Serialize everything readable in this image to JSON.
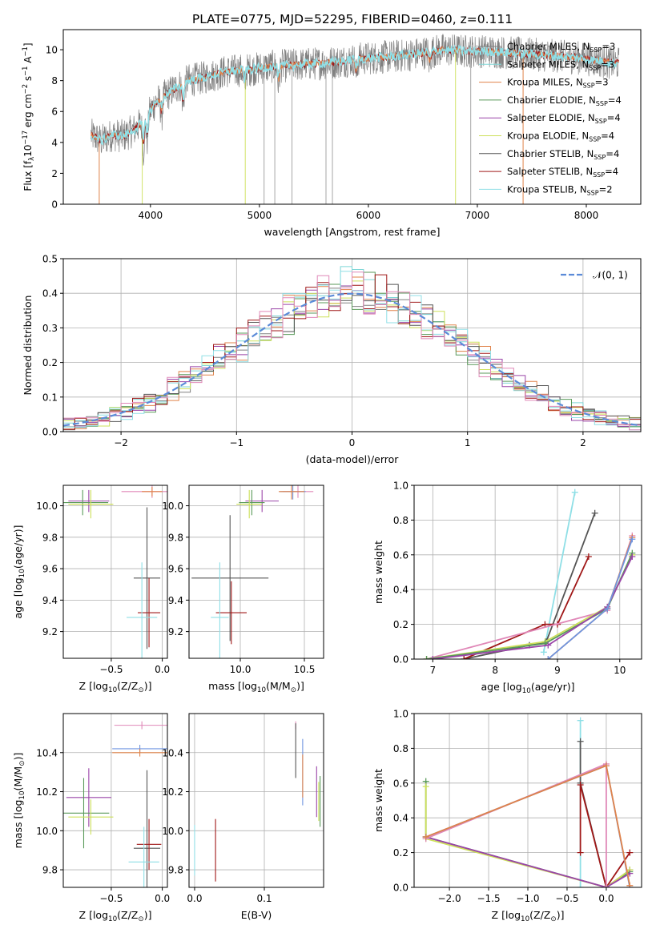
{
  "title": "PLATE=0775, MJD=52295, FIBERID=0460, z=0.111",
  "colors": {
    "Chabrier MILES": "#808080",
    "Salpeter MILES": "#7fd6d6",
    "Kroupa MILES": "#e0834a",
    "Chabrier ELODIE": "#5a9a5a",
    "Salpeter ELODIE": "#9a45a8",
    "Kroupa ELODIE": "#cde05a",
    "Chabrier STELIB": "#555555",
    "Salpeter STELIB": "#a01818",
    "Kroupa STELIB": "#8fdfe6",
    "gauss": "#5b8bd8",
    "pink": "#e088b8",
    "blue": "#6f95e0"
  },
  "chart_data": [
    {
      "id": "spectrum",
      "type": "line",
      "title": "PLATE=0775, MJD=52295, FIBERID=0460, z=0.111",
      "xlabel": "wavelength [Angstrom, rest frame]",
      "ylabel_main": "Flux [f",
      "ylabel_sub1": "λ",
      "ylabel_mid": "10",
      "ylabel_sup1": "−17",
      "ylabel_end": " erg cm",
      "ylabel_sup2": "−2",
      "ylabel_s": " s",
      "ylabel_sup3": "−1",
      "ylabel_A": " A",
      "ylabel_sup4": "−1",
      "ylabel_close": "]",
      "xlim": [
        3200,
        8500
      ],
      "ylim": [
        0,
        11.3
      ],
      "xticks": [
        4000,
        5000,
        6000,
        7000,
        8000
      ],
      "yticks": [
        0,
        2,
        4,
        6,
        8,
        10
      ],
      "grid": false,
      "legend_position": "top-right",
      "legend": [
        {
          "label": "Chabrier MILES, N",
          "sub": "SSP",
          "tail": "=3",
          "color": "Chabrier MILES"
        },
        {
          "label": "Salpeter MILES, N",
          "sub": "SSP",
          "tail": "=3",
          "color": "Salpeter MILES"
        },
        {
          "label": "Kroupa MILES, N",
          "sub": "SSP",
          "tail": "=3",
          "color": "Kroupa MILES"
        },
        {
          "label": "Chabrier ELODIE, N",
          "sub": "SSP",
          "tail": "=4",
          "color": "Chabrier ELODIE"
        },
        {
          "label": "Salpeter ELODIE, N",
          "sub": "SSP",
          "tail": "=4",
          "color": "Salpeter ELODIE"
        },
        {
          "label": "Kroupa ELODIE, N",
          "sub": "SSP",
          "tail": "=4",
          "color": "Kroupa ELODIE"
        },
        {
          "label": "Chabrier STELIB, N",
          "sub": "SSP",
          "tail": "=4",
          "color": "Chabrier STELIB"
        },
        {
          "label": "Salpeter STELIB, N",
          "sub": "SSP",
          "tail": "=4",
          "color": "Salpeter STELIB"
        },
        {
          "label": "Kroupa STELIB, N",
          "sub": "SSP",
          "tail": "=2",
          "color": "Kroupa STELIB"
        }
      ],
      "continuum": {
        "x": [
          3450,
          3550,
          3650,
          3750,
          3850,
          3950,
          4050,
          4150,
          4250,
          4350,
          4500,
          4700,
          4900,
          5100,
          5300,
          5500,
          5700,
          5900,
          6100,
          6300,
          6500,
          6700,
          6900,
          7100,
          7300,
          7500,
          7700,
          7900,
          8100,
          8300
        ],
        "y": [
          4.5,
          4.1,
          4.5,
          4.4,
          4.8,
          5.5,
          6.6,
          7.1,
          7.6,
          8.0,
          8.2,
          8.6,
          8.7,
          8.9,
          9.0,
          9.1,
          9.2,
          9.4,
          9.5,
          9.6,
          9.8,
          10.0,
          9.9,
          9.9,
          9.8,
          9.7,
          9.6,
          9.5,
          9.3,
          9.1
        ]
      }
    },
    {
      "id": "residuals",
      "type": "bar",
      "xlabel": "(data-model)/error",
      "ylabel": "Normed distribution",
      "xlim": [
        -2.5,
        2.5
      ],
      "ylim": [
        0,
        0.5
      ],
      "xticks": [
        -2,
        -1,
        0,
        1,
        2
      ],
      "yticks": [
        0.0,
        0.1,
        0.2,
        0.3,
        0.4,
        0.5
      ],
      "grid": true,
      "legend_position": "top-right",
      "legend_label": "𝒩(0, 1)",
      "bin_width": 0.1
    },
    {
      "id": "age-vs-z",
      "type": "scatter",
      "xlabel": "Z [log",
      "xlabel_sub": "10",
      "xlabel_tail": "(Z/Z",
      "xlabel_sub2": "⊙",
      "xlabel_close": ")]",
      "ylabel": "age  [log",
      "ylabel_sub": "10",
      "ylabel_tail": "(age/yr)]",
      "xlim": [
        -0.97,
        0.05
      ],
      "ylim": [
        9.03,
        10.13
      ],
      "xticks": [
        -0.5,
        0.0
      ],
      "yticks": [
        9.2,
        9.4,
        9.6,
        9.8,
        10.0
      ],
      "grid": true,
      "points": [
        {
          "x": -0.1,
          "y": 10.09,
          "xerr": 0.3,
          "yerr": 0.04,
          "color": "pink"
        },
        {
          "x": -0.1,
          "y": 10.09,
          "xerr": 0.1,
          "yerr": 0.03,
          "color": "Kroupa MILES"
        },
        {
          "x": -0.72,
          "y": 10.03,
          "xerr": 0.2,
          "yerr": 0.07,
          "color": "Salpeter ELODIE"
        },
        {
          "x": -0.78,
          "y": 10.02,
          "xerr": 0.25,
          "yerr": 0.08,
          "color": "Chabrier ELODIE"
        },
        {
          "x": -0.7,
          "y": 10.01,
          "xerr": 0.22,
          "yerr": 0.09,
          "color": "Kroupa ELODIE"
        },
        {
          "x": -0.15,
          "y": 9.54,
          "xerr": 0.13,
          "yerr": 0.45,
          "color": "Chabrier STELIB"
        },
        {
          "x": -0.13,
          "y": 9.32,
          "xerr": 0.11,
          "yerr": 0.22,
          "color": "Salpeter STELIB"
        },
        {
          "x": -0.2,
          "y": 9.29,
          "xerr": 0.15,
          "yerr": 0.35,
          "color": "Kroupa STELIB"
        }
      ]
    },
    {
      "id": "age-vs-mass",
      "type": "scatter",
      "xlabel": "mass [log",
      "xlabel_sub": "10",
      "xlabel_tail": "(M/M",
      "xlabel_sub2": "⊙",
      "xlabel_close": ")]",
      "xlim": [
        9.6,
        10.65
      ],
      "ylim": [
        9.03,
        10.13
      ],
      "xticks": [
        10.0,
        10.5
      ],
      "yticks": [
        9.2,
        9.4,
        9.6,
        9.8,
        10.0
      ],
      "grid": true,
      "points": [
        {
          "x": 10.45,
          "y": 10.09,
          "xerr": 0.12,
          "yerr": 0.04,
          "color": "pink"
        },
        {
          "x": 10.41,
          "y": 10.09,
          "xerr": 0.1,
          "yerr": 0.05,
          "color": "blue"
        },
        {
          "x": 10.4,
          "y": 10.09,
          "xerr": 0.1,
          "yerr": 0.05,
          "color": "Kroupa MILES"
        },
        {
          "x": 10.17,
          "y": 10.03,
          "xerr": 0.13,
          "yerr": 0.07,
          "color": "Salpeter ELODIE"
        },
        {
          "x": 10.09,
          "y": 10.02,
          "xerr": 0.1,
          "yerr": 0.08,
          "color": "Chabrier ELODIE"
        },
        {
          "x": 10.07,
          "y": 10.01,
          "xerr": 0.1,
          "yerr": 0.09,
          "color": "Kroupa ELODIE"
        },
        {
          "x": 9.92,
          "y": 9.54,
          "xerr": 0.3,
          "yerr": 0.4,
          "color": "Chabrier STELIB"
        },
        {
          "x": 9.93,
          "y": 9.32,
          "xerr": 0.12,
          "yerr": 0.2,
          "color": "Salpeter STELIB"
        },
        {
          "x": 9.84,
          "y": 9.29,
          "xerr": 0.07,
          "yerr": 0.35,
          "color": "Kroupa STELIB"
        }
      ]
    },
    {
      "id": "weight-vs-age",
      "type": "line",
      "xlabel": "age  [log",
      "xlabel_sub": "10",
      "xlabel_tail": "(age/yr)]",
      "ylabel": "mass weight",
      "xlim": [
        6.7,
        10.35
      ],
      "ylim": [
        0,
        1
      ],
      "xticks": [
        7,
        8,
        9,
        10
      ],
      "yticks": [
        0.0,
        0.2,
        0.4,
        0.6,
        0.8,
        1.0
      ],
      "grid": true,
      "series": [
        {
          "color": "Kroupa STELIB",
          "x": [
            8.78,
            9.28
          ],
          "y": [
            0.04,
            0.96
          ]
        },
        {
          "color": "Chabrier STELIB",
          "x": [
            7.5,
            8.55,
            8.82,
            9.6
          ],
          "y": [
            0.0,
            0.08,
            0.1,
            0.84
          ]
        },
        {
          "color": "Salpeter STELIB",
          "x": [
            7.5,
            8.8,
            9.0,
            9.5
          ],
          "y": [
            0.0,
            0.2,
            0.2,
            0.59
          ]
        },
        {
          "color": "pink",
          "x": [
            6.9,
            9.8,
            10.2
          ],
          "y": [
            0.0,
            0.28,
            0.71
          ]
        },
        {
          "color": "Kroupa ELODIE",
          "x": [
            6.9,
            8.8,
            9.8,
            10.2
          ],
          "y": [
            0.0,
            0.1,
            0.3,
            0.6
          ]
        },
        {
          "color": "Chabrier ELODIE",
          "x": [
            6.9,
            8.8,
            9.8,
            10.2
          ],
          "y": [
            0.0,
            0.09,
            0.29,
            0.61
          ]
        },
        {
          "color": "Salpeter ELODIE",
          "x": [
            7.0,
            8.85,
            9.8,
            10.2
          ],
          "y": [
            0.0,
            0.08,
            0.3,
            0.59
          ]
        },
        {
          "color": "Kroupa MILES",
          "x": [
            8.85,
            9.8,
            10.2
          ],
          "y": [
            0.0,
            0.29,
            0.7
          ]
        },
        {
          "color": "blue",
          "x": [
            8.85,
            9.8,
            10.2
          ],
          "y": [
            0.0,
            0.29,
            0.69
          ]
        }
      ]
    },
    {
      "id": "mass-vs-z",
      "type": "scatter",
      "xlabel": "Z [log",
      "xlabel_sub": "10",
      "xlabel_tail": "(Z/Z",
      "xlabel_sub2": "⊙",
      "xlabel_close": ")]",
      "ylabel": "mass [log",
      "ylabel_sub": "10",
      "ylabel_tail": "(M/M",
      "ylabel_sub2": "⊙",
      "ylabel_close": ")]",
      "xlim": [
        -0.97,
        0.05
      ],
      "ylim": [
        9.71,
        10.6
      ],
      "xticks": [
        -0.5,
        0.0
      ],
      "yticks": [
        9.8,
        10.0,
        10.2,
        10.4
      ],
      "grid": true,
      "points": [
        {
          "x": -0.2,
          "y": 10.54,
          "xerr": 0.27,
          "yerr": 0.02,
          "color": "pink"
        },
        {
          "x": -0.22,
          "y": 10.42,
          "xerr": 0.27,
          "yerr": 0.02,
          "color": "blue"
        },
        {
          "x": -0.22,
          "y": 10.4,
          "xerr": 0.27,
          "yerr": 0.02,
          "color": "Kroupa MILES"
        },
        {
          "x": -0.72,
          "y": 10.17,
          "xerr": 0.22,
          "yerr": 0.15,
          "color": "Salpeter ELODIE"
        },
        {
          "x": -0.77,
          "y": 10.09,
          "xerr": 0.25,
          "yerr": 0.18,
          "color": "Chabrier ELODIE"
        },
        {
          "x": -0.7,
          "y": 10.07,
          "xerr": 0.22,
          "yerr": 0.09,
          "color": "Kroupa ELODIE"
        },
        {
          "x": -0.15,
          "y": 9.91,
          "xerr": 0.13,
          "yerr": 0.4,
          "color": "Chabrier STELIB"
        },
        {
          "x": -0.13,
          "y": 9.93,
          "xerr": 0.12,
          "yerr": 0.13,
          "color": "Salpeter STELIB"
        },
        {
          "x": -0.18,
          "y": 9.84,
          "xerr": 0.15,
          "yerr": 0.18,
          "color": "Kroupa STELIB"
        }
      ]
    },
    {
      "id": "mass-vs-ebv",
      "type": "scatter",
      "xlabel": "E(B-V)",
      "xlim": [
        -0.008,
        0.185
      ],
      "ylim": [
        9.71,
        10.6
      ],
      "xticks": [
        0.0,
        0.1
      ],
      "yticks": [
        9.8,
        10.0,
        10.2,
        10.4
      ],
      "grid": true,
      "points": [
        {
          "x": 0.145,
          "y": 10.54,
          "yerr": 0.02,
          "color": "pink"
        },
        {
          "x": 0.145,
          "y": 10.41,
          "yerr": 0.14,
          "color": "Chabrier STELIB"
        },
        {
          "x": 0.155,
          "y": 10.3,
          "yerr": 0.17,
          "color": "blue"
        },
        {
          "x": 0.155,
          "y": 10.28,
          "yerr": 0.11,
          "color": "Kroupa MILES"
        },
        {
          "x": 0.175,
          "y": 10.2,
          "yerr": 0.13,
          "color": "Salpeter ELODIE"
        },
        {
          "x": 0.178,
          "y": 10.15,
          "yerr": 0.1,
          "color": "Kroupa ELODIE"
        },
        {
          "x": 0.18,
          "y": 10.15,
          "yerr": 0.13,
          "color": "Chabrier ELODIE"
        },
        {
          "x": 0.0,
          "y": 9.9,
          "yerr": 0.13,
          "color": "Kroupa STELIB"
        },
        {
          "x": 0.03,
          "y": 9.9,
          "yerr": 0.16,
          "color": "Salpeter STELIB"
        }
      ]
    },
    {
      "id": "weight-vs-z",
      "type": "line",
      "xlabel": "Z [log",
      "xlabel_sub": "10",
      "xlabel_tail": "(Z/Z",
      "xlabel_sub2": "⊙",
      "xlabel_close": ")]",
      "ylabel": "mass weight",
      "xlim": [
        -2.45,
        0.45
      ],
      "ylim": [
        0,
        1
      ],
      "xticks": [
        -2.0,
        -1.5,
        -1.0,
        -0.5,
        0.0
      ],
      "yticks": [
        0.0,
        0.2,
        0.4,
        0.6,
        0.8,
        1.0
      ],
      "grid": true,
      "series": [
        {
          "color": "Kroupa STELIB",
          "x": [
            -0.33,
            -0.33
          ],
          "y": [
            0.0,
            0.96
          ]
        },
        {
          "color": "Chabrier STELIB",
          "x": [
            -0.33,
            -0.33,
            0.0,
            0.3
          ],
          "y": [
            0.84,
            0.6,
            0.0,
            0.1
          ]
        },
        {
          "color": "Salpeter STELIB",
          "x": [
            -0.33,
            -0.33,
            0.0,
            0.3
          ],
          "y": [
            0.2,
            0.59,
            0.0,
            0.2
          ]
        },
        {
          "color": "Chabrier ELODIE",
          "x": [
            -2.3,
            -2.3,
            0.0,
            0.3
          ],
          "y": [
            0.61,
            0.29,
            0.0,
            0.09
          ]
        },
        {
          "color": "Kroupa ELODIE",
          "x": [
            -2.3,
            -2.3,
            0.0,
            0.3
          ],
          "y": [
            0.58,
            0.28,
            0.0,
            0.1
          ]
        },
        {
          "color": "Salpeter ELODIE",
          "x": [
            -2.3,
            0.0,
            0.3
          ],
          "y": [
            0.29,
            0.0,
            0.08
          ]
        },
        {
          "color": "pink",
          "x": [
            -2.3,
            0.0,
            0.0
          ],
          "y": [
            0.28,
            0.71,
            0.0
          ]
        },
        {
          "color": "blue",
          "x": [
            -2.3,
            0.0,
            0.3
          ],
          "y": [
            0.29,
            0.7,
            0.0
          ]
        },
        {
          "color": "Kroupa MILES",
          "x": [
            -2.3,
            0.0,
            0.3
          ],
          "y": [
            0.29,
            0.7,
            0.01
          ]
        }
      ]
    }
  ]
}
